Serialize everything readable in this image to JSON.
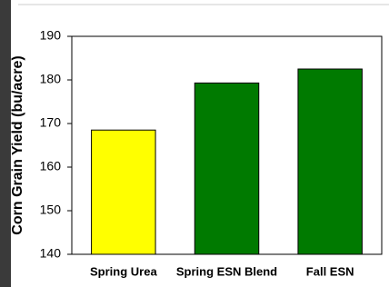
{
  "chart_data": {
    "type": "bar",
    "y_label": "Corn Grain Yield (bu/acre)",
    "categories": [
      "Spring Urea",
      "Spring ESN Blend",
      "Fall ESN"
    ],
    "values": [
      168.5,
      179.3,
      182.5
    ],
    "colors": [
      "#ffff00",
      "#007a00",
      "#007a00"
    ],
    "ylim": [
      140,
      190
    ],
    "yticks": [
      140,
      150,
      160,
      170,
      180,
      190
    ],
    "grid": false
  }
}
